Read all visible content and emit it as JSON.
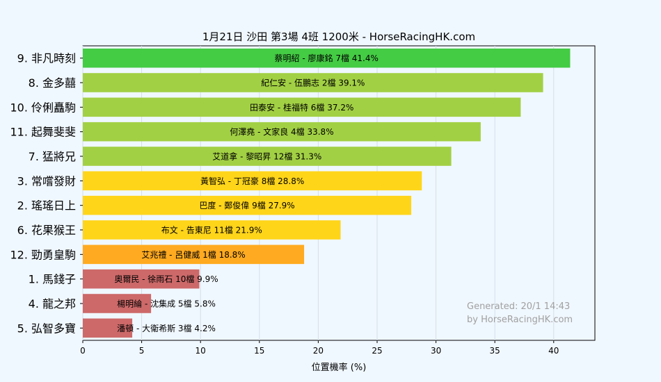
{
  "chart_data": {
    "type": "bar",
    "orientation": "horizontal",
    "title": "1月21日  沙田  第3場  4班  1200米 - HorseRacingHK.com",
    "xlabel": "位置機率 (%)",
    "ylabel": "",
    "xlim": [
      0,
      43.5
    ],
    "xticks": [
      "0",
      "5",
      "10",
      "15",
      "20",
      "25",
      "30",
      "35",
      "40"
    ],
    "grid": "vertical",
    "categories": [
      "9. 非凡時刻",
      "8. 金多囍",
      "10. 伶俐矗駒",
      "11. 起舞斐斐",
      "7. 猛將兄",
      "3. 常嚐發財",
      "2. 瑤瑤日上",
      "6. 花果猴王",
      "12. 勁勇皇駒",
      "1. 馬錢子",
      "4. 龍之邦",
      "5. 弘智多寶"
    ],
    "values": [
      41.4,
      39.1,
      37.2,
      33.8,
      31.3,
      28.8,
      27.9,
      21.9,
      18.8,
      9.9,
      5.8,
      4.2
    ],
    "bar_labels": [
      "蔡明紹 - 廖康銘 7檔  41.4%",
      "紀仁安 - 伍鵬志 2檔  39.1%",
      "田泰安 - 桂福特 6檔  37.2%",
      "何澤堯 - 文家良 4檔  33.8%",
      "艾道拿 - 黎昭昇 12檔  31.3%",
      "黃智弘 - 丁冠豪 8檔  28.8%",
      "巴度 - 鄭俊偉 9檔  27.9%",
      "布文 - 告東尼 11檔  21.9%",
      "艾兆禮 - 呂健威 1檔  18.8%",
      "奧爾民 - 徐雨石 10檔  9.9%",
      "楊明綸 - 沈集成 5檔  5.8%",
      "潘頓 - 大衛希斯 3檔  4.2%"
    ],
    "colors": [
      "#44cc44",
      "#a2d044",
      "#a2d044",
      "#a2d044",
      "#a2d044",
      "#ffd51a",
      "#ffd51a",
      "#ffd51a",
      "#ffaa20",
      "#cd6969",
      "#cd6969",
      "#cd6969"
    ],
    "annotation": [
      "Generated: 20/1 14:43",
      "by HorseRacingHK.com"
    ]
  }
}
